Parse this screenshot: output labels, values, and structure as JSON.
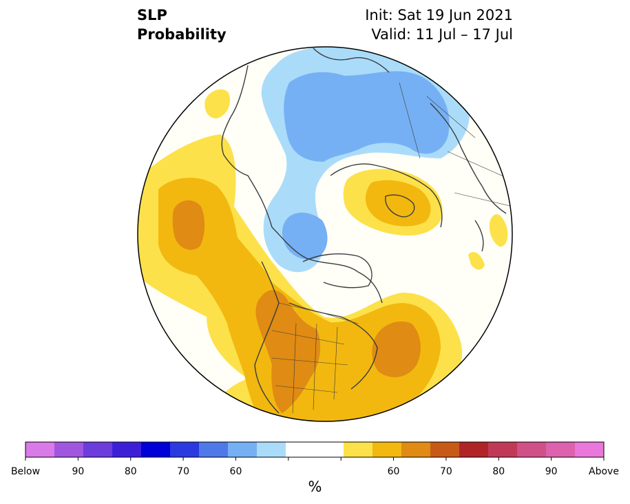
{
  "title": {
    "left_line1": "SLP",
    "left_line2": "Probability",
    "right_line1": "Init: Sat 19 Jun 2021",
    "right_line2": "Valid: 11 Jul – 17 Jul"
  },
  "colorbar": {
    "unit": "%",
    "tick_labels": [
      "Below",
      "90",
      "80",
      "70",
      "60",
      "",
      "",
      "60",
      "70",
      "80",
      "90",
      "Above"
    ],
    "below_colors": [
      "#d87ae8",
      "#a156e0",
      "#6c3cdc",
      "#3e1fd8",
      "#0000d8",
      "#2a3ae0",
      "#4f79e8",
      "#76b0f4",
      "#aadcfa"
    ],
    "neutral_color": "#ffffff",
    "above_colors": [
      "#fde14a",
      "#f2b80f",
      "#df8b14",
      "#c85a18",
      "#b02428",
      "#c03a58",
      "#d05088",
      "#dc62ae",
      "#ea78da"
    ]
  },
  "map_colors": {
    "background": "#fffff8",
    "coast": "#3a3a3a",
    "below_60": "#aadcfa",
    "below_70": "#76b0f4",
    "above_60": "#fde14a",
    "above_70": "#f2b80f",
    "above_80": "#df8b14"
  }
}
